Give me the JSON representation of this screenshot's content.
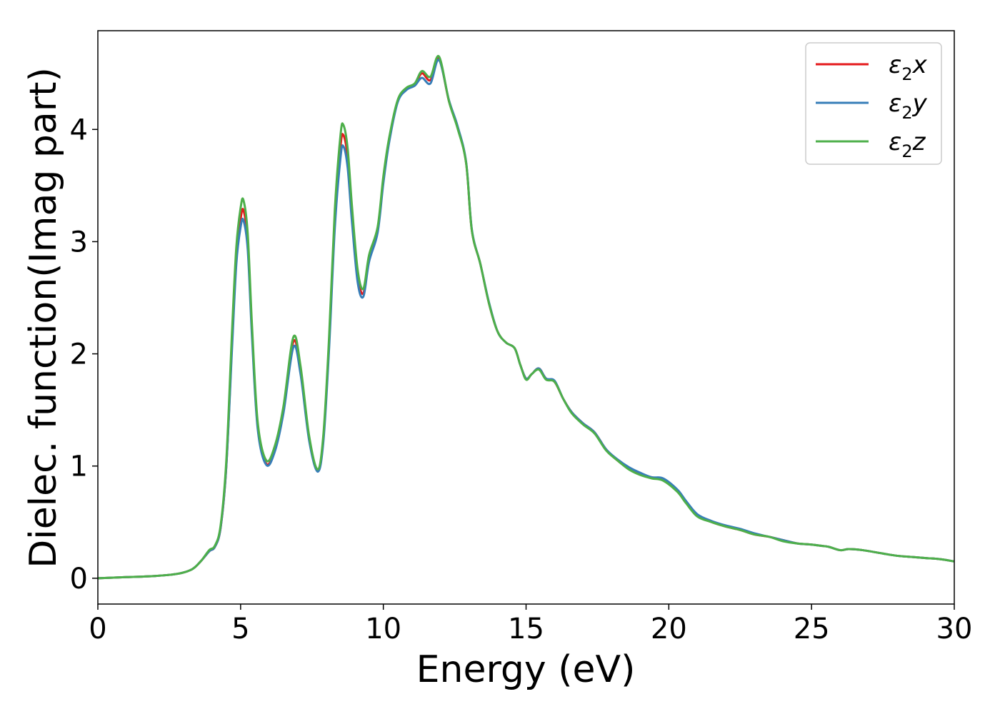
{
  "chart_data": {
    "type": "line",
    "title": "",
    "xlabel": "Energy (eV)",
    "ylabel": "Dielec. function(Imag part)",
    "xlim": [
      0,
      30
    ],
    "ylim": [
      -0.23,
      4.88
    ],
    "xticks": [
      0,
      5,
      10,
      15,
      20,
      25,
      30
    ],
    "yticks": [
      0,
      1,
      2,
      3,
      4
    ],
    "grid": false,
    "legend_position": "top-right",
    "x": [
      0,
      1,
      2,
      2.8,
      3.3,
      3.6,
      3.9,
      4.1,
      4.3,
      4.5,
      4.7,
      4.85,
      5.0,
      5.1,
      5.25,
      5.4,
      5.6,
      5.9,
      6.2,
      6.5,
      6.85,
      7.1,
      7.4,
      7.7,
      7.9,
      8.1,
      8.3,
      8.5,
      8.6,
      8.75,
      8.9,
      9.1,
      9.3,
      9.5,
      9.8,
      10.0,
      10.2,
      10.5,
      10.8,
      11.1,
      11.35,
      11.65,
      11.95,
      12.3,
      12.6,
      12.9,
      13.1,
      13.4,
      13.7,
      14.0,
      14.3,
      14.6,
      14.8,
      15.0,
      15.2,
      15.45,
      15.7,
      16.0,
      16.3,
      16.6,
      17.0,
      17.4,
      17.8,
      18.2,
      18.6,
      19.0,
      19.4,
      19.8,
      20.3,
      20.6,
      21.0,
      21.5,
      22.0,
      22.5,
      23.0,
      23.5,
      24.0,
      24.5,
      25.0,
      25.3,
      25.6,
      26.0,
      26.3,
      26.8,
      27.5,
      28.0,
      28.5,
      29.0,
      29.5,
      30.0
    ],
    "series": [
      {
        "name": "ε₂x",
        "label_base": "ε",
        "label_sub": "2",
        "label_var": "x",
        "color": "#e41a1c",
        "values": [
          0.0,
          0.01,
          0.02,
          0.04,
          0.08,
          0.15,
          0.24,
          0.28,
          0.45,
          1.0,
          2.1,
          2.85,
          3.2,
          3.28,
          3.0,
          2.2,
          1.35,
          1.02,
          1.15,
          1.5,
          2.11,
          1.85,
          1.25,
          0.96,
          1.25,
          2.1,
          3.2,
          3.85,
          3.95,
          3.75,
          3.25,
          2.7,
          2.54,
          2.85,
          3.1,
          3.55,
          3.9,
          4.25,
          4.36,
          4.4,
          4.5,
          4.44,
          4.63,
          4.25,
          4.02,
          3.7,
          3.1,
          2.8,
          2.45,
          2.2,
          2.1,
          2.05,
          1.9,
          1.78,
          1.82,
          1.87,
          1.78,
          1.75,
          1.6,
          1.48,
          1.38,
          1.3,
          1.15,
          1.05,
          0.98,
          0.93,
          0.9,
          0.88,
          0.78,
          0.68,
          0.56,
          0.5,
          0.46,
          0.43,
          0.39,
          0.37,
          0.34,
          0.31,
          0.3,
          0.29,
          0.28,
          0.25,
          0.26,
          0.25,
          0.22,
          0.2,
          0.19,
          0.18,
          0.17,
          0.15
        ]
      },
      {
        "name": "ε₂y",
        "label_base": "ε",
        "label_sub": "2",
        "label_var": "y",
        "color": "#377eb8",
        "values": [
          0.0,
          0.01,
          0.02,
          0.04,
          0.08,
          0.15,
          0.24,
          0.28,
          0.45,
          1.0,
          2.05,
          2.8,
          3.13,
          3.19,
          2.93,
          2.15,
          1.33,
          1.01,
          1.13,
          1.47,
          2.06,
          1.82,
          1.23,
          0.95,
          1.22,
          2.05,
          3.12,
          3.75,
          3.85,
          3.66,
          3.18,
          2.64,
          2.51,
          2.82,
          3.08,
          3.52,
          3.88,
          4.24,
          4.35,
          4.39,
          4.46,
          4.41,
          4.62,
          4.26,
          4.03,
          3.71,
          3.11,
          2.8,
          2.46,
          2.2,
          2.1,
          2.05,
          1.9,
          1.78,
          1.82,
          1.87,
          1.78,
          1.76,
          1.6,
          1.48,
          1.38,
          1.3,
          1.15,
          1.06,
          0.99,
          0.94,
          0.9,
          0.89,
          0.79,
          0.69,
          0.57,
          0.51,
          0.47,
          0.44,
          0.4,
          0.37,
          0.34,
          0.31,
          0.3,
          0.29,
          0.28,
          0.25,
          0.26,
          0.25,
          0.22,
          0.2,
          0.19,
          0.18,
          0.17,
          0.15
        ]
      },
      {
        "name": "ε₂z",
        "label_base": "ε",
        "label_sub": "2",
        "label_var": "z",
        "color": "#4daf4a",
        "values": [
          0.0,
          0.01,
          0.02,
          0.04,
          0.08,
          0.15,
          0.25,
          0.29,
          0.47,
          1.05,
          2.2,
          2.95,
          3.3,
          3.37,
          3.07,
          2.25,
          1.39,
          1.05,
          1.18,
          1.53,
          2.15,
          1.89,
          1.27,
          0.97,
          1.28,
          2.15,
          3.28,
          3.95,
          4.04,
          3.83,
          3.32,
          2.75,
          2.58,
          2.88,
          3.13,
          3.58,
          3.92,
          4.26,
          4.37,
          4.41,
          4.52,
          4.47,
          4.65,
          4.25,
          4.01,
          3.7,
          3.1,
          2.8,
          2.45,
          2.2,
          2.1,
          2.05,
          1.9,
          1.77,
          1.82,
          1.86,
          1.77,
          1.75,
          1.6,
          1.47,
          1.37,
          1.29,
          1.14,
          1.05,
          0.97,
          0.92,
          0.89,
          0.87,
          0.77,
          0.67,
          0.55,
          0.5,
          0.46,
          0.43,
          0.39,
          0.37,
          0.33,
          0.31,
          0.3,
          0.29,
          0.28,
          0.25,
          0.26,
          0.25,
          0.22,
          0.2,
          0.19,
          0.18,
          0.17,
          0.15
        ]
      }
    ]
  }
}
